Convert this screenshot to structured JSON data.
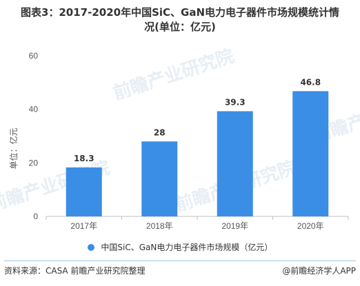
{
  "title_line1": "图表3：2017-2020年中国SiC、GaN电力电子器件市场规模统计情",
  "title_line2": "况(单位：亿元)",
  "watermark_text": "前瞻产业研究院",
  "source_text": "资料来源：CASA 前瞻产业研究院整理",
  "brand_text": "@前瞻经济学人APP",
  "chart_data": {
    "type": "bar",
    "categories": [
      "2017年",
      "2018年",
      "2019年",
      "2020年"
    ],
    "series": [
      {
        "name": "中国SiC、GaN电力电子器件市场规模（亿元）",
        "values": [
          18.3,
          28,
          39.3,
          46.8
        ],
        "value_labels": [
          "18.3",
          "28",
          "39.3",
          "46.8"
        ],
        "color": "#3a8ee6"
      }
    ],
    "ylabel": "单位：亿元",
    "xlabel": "",
    "ylim": [
      0,
      60
    ],
    "yticks": [
      0,
      20,
      40,
      60
    ],
    "grid": false,
    "legend": "bottom-center"
  }
}
